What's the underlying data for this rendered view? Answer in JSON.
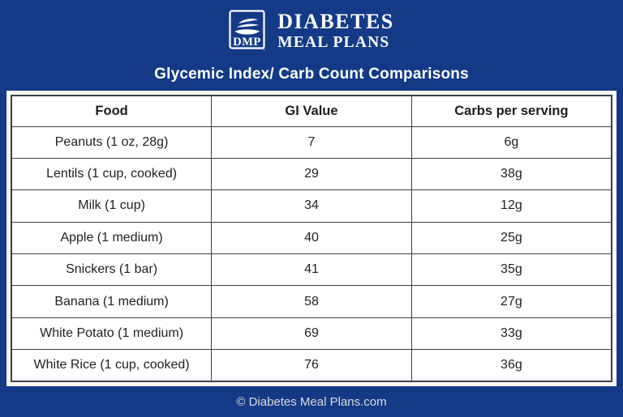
{
  "brand": {
    "logo_acronym": "DMP",
    "trademark": "™",
    "name_line1": "DIABETES",
    "name_line2": "MEAL PLANS"
  },
  "title": "Glycemic Index/ Carb Count Comparisons",
  "table": {
    "headers": [
      "Food",
      "GI Value",
      "Carbs per serving"
    ],
    "rows": [
      {
        "food": "Peanuts (1 oz, 28g)",
        "gi": "7",
        "carbs": "6g"
      },
      {
        "food": "Lentils (1 cup, cooked)",
        "gi": "29",
        "carbs": "38g"
      },
      {
        "food": "Milk (1 cup)",
        "gi": "34",
        "carbs": "12g"
      },
      {
        "food": "Apple (1 medium)",
        "gi": "40",
        "carbs": "25g"
      },
      {
        "food": "Snickers (1 bar)",
        "gi": "41",
        "carbs": "35g"
      },
      {
        "food": "Banana (1 medium)",
        "gi": "58",
        "carbs": "27g"
      },
      {
        "food": "White Potato (1 medium)",
        "gi": "69",
        "carbs": "33g"
      },
      {
        "food": "White Rice (1 cup, cooked)",
        "gi": "76",
        "carbs": "36g"
      }
    ]
  },
  "footer": {
    "copyright": "© Diabetes Meal Plans.com"
  },
  "colors": {
    "navy": "#143a87",
    "table_border": "#3a3f48",
    "table_text": "#1f1f1f",
    "title_text": "#ffffff",
    "footer_text": "#dcdcdc"
  }
}
